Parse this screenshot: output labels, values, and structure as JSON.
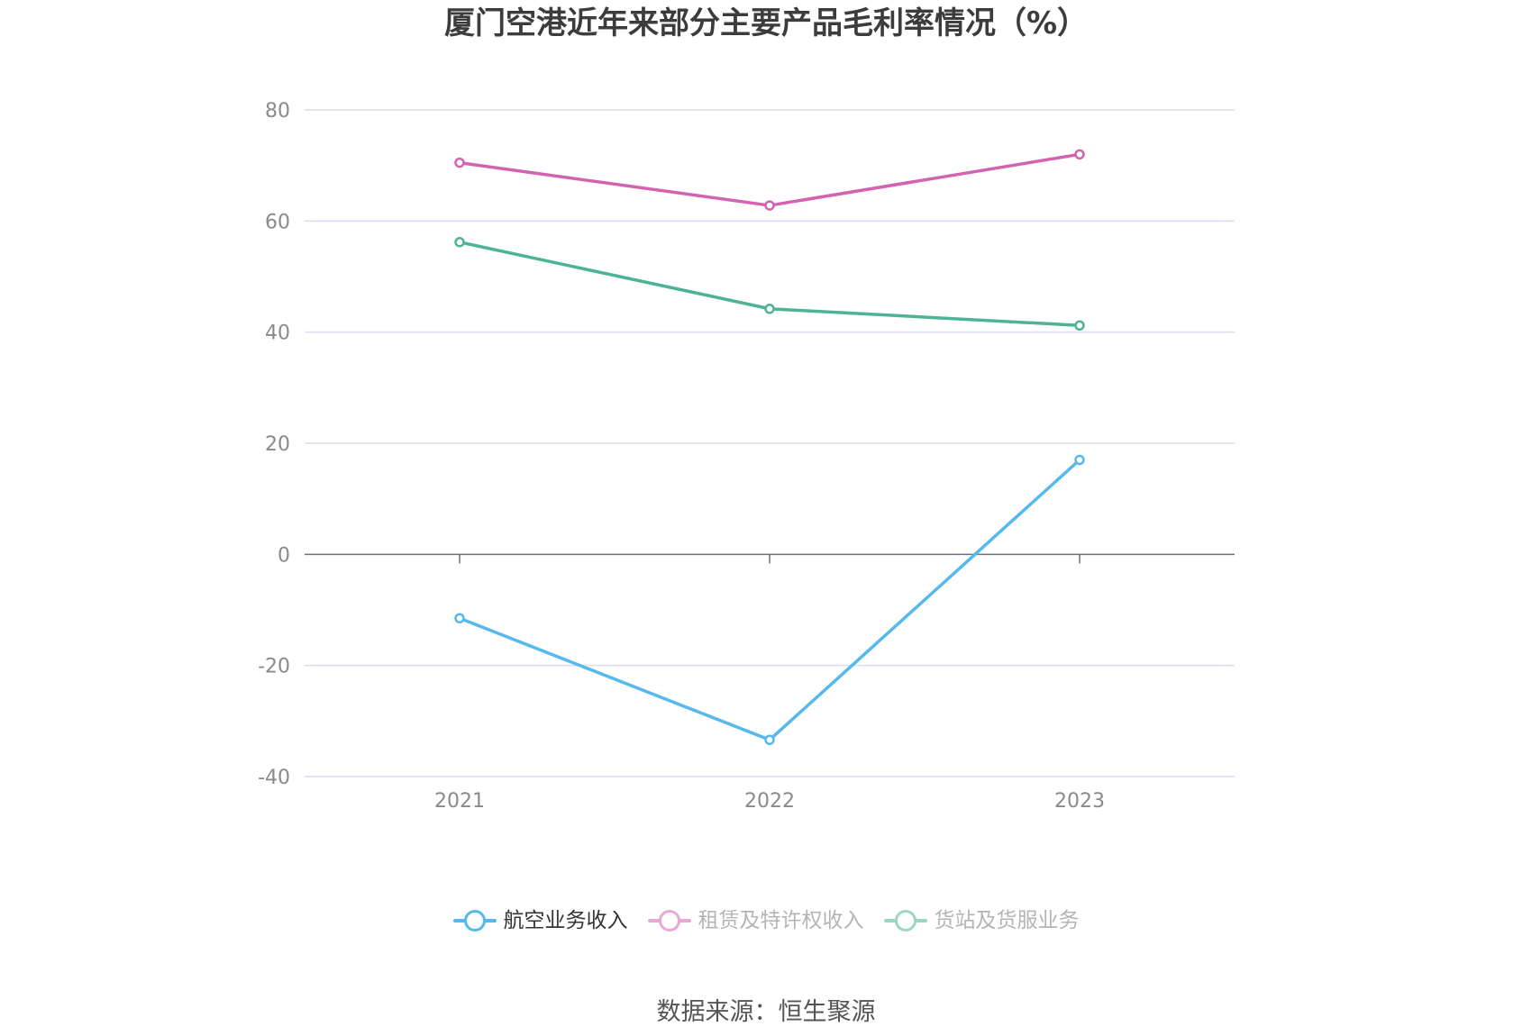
{
  "chart_data": {
    "type": "line",
    "title": "厦门空港近年来部分主要产品毛利率情况（%）",
    "x": [
      "2021",
      "2022",
      "2023"
    ],
    "ylim": [
      -40,
      80
    ],
    "yticks": [
      "80",
      "60",
      "40",
      "20",
      "0",
      "-20",
      "-40"
    ],
    "series": [
      {
        "name": "航空业务收入",
        "color": "#56b9ee",
        "values": [
          -11.5,
          -33.4,
          17.0
        ]
      },
      {
        "name": "租赁及特许权收入",
        "color": "#d363b0",
        "values": [
          70.5,
          62.8,
          72.0
        ]
      },
      {
        "name": "货站及货服业务",
        "color": "#4db396",
        "values": [
          56.2,
          44.2,
          41.2
        ]
      }
    ],
    "grid": true,
    "legend_position": "bottom"
  },
  "source": "数据来源：恒生聚源"
}
